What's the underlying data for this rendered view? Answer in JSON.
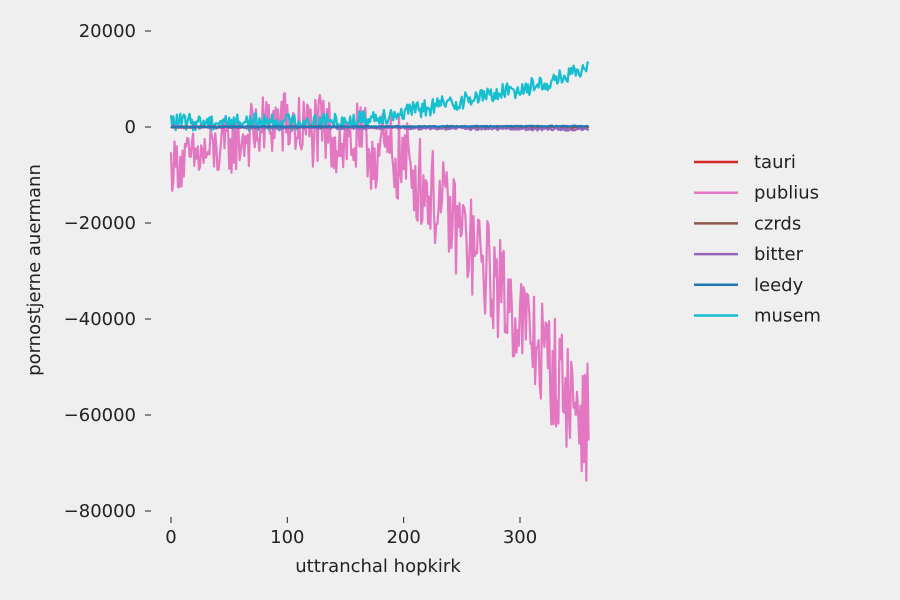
{
  "chart_data": {
    "type": "line",
    "title": "",
    "xlabel": "uttranchal hopkirk",
    "ylabel": "pornostjerne auermann",
    "xlim": [
      -8,
      360
    ],
    "ylim": [
      -80000,
      21000
    ],
    "xticks": [
      0,
      100,
      200,
      300
    ],
    "yticks": [
      20000,
      0,
      -20000,
      -40000,
      -60000,
      -80000
    ],
    "ytick_labels": [
      "20000",
      "0",
      "−20000",
      "−40000",
      "−60000",
      "−80000"
    ],
    "xtick_labels": [
      "0",
      "100",
      "200",
      "300"
    ],
    "grid": false,
    "legend_position": "right",
    "x_range": [
      0,
      359
    ],
    "series": [
      {
        "name": "tauri",
        "color": "#d62728",
        "trend": [
          [
            0,
            0
          ],
          [
            359,
            0
          ]
        ],
        "noise": 200
      },
      {
        "name": "publius",
        "color": "#e377c2",
        "trend": [
          [
            0,
            -8000
          ],
          [
            40,
            -5000
          ],
          [
            90,
            1000
          ],
          [
            140,
            -2000
          ],
          [
            200,
            -7000
          ],
          [
            250,
            -22000
          ],
          [
            300,
            -40000
          ],
          [
            340,
            -55000
          ],
          [
            359,
            -62000
          ]
        ],
        "noise": 9000
      },
      {
        "name": "czrds",
        "color": "#8c564b",
        "trend": [
          [
            0,
            0
          ],
          [
            359,
            0
          ]
        ],
        "noise": 150
      },
      {
        "name": "bitter",
        "color": "#9467bd",
        "trend": [
          [
            0,
            0
          ],
          [
            200,
            -200
          ],
          [
            359,
            -500
          ]
        ],
        "noise": 300
      },
      {
        "name": "leedy",
        "color": "#1f77b4",
        "trend": [
          [
            0,
            0
          ],
          [
            359,
            200
          ]
        ],
        "noise": 100
      },
      {
        "name": "musem",
        "color": "#17becf",
        "trend": [
          [
            0,
            1000
          ],
          [
            150,
            1200
          ],
          [
            200,
            3000
          ],
          [
            260,
            6000
          ],
          [
            320,
            9000
          ],
          [
            359,
            12000
          ]
        ],
        "noise": 1800
      }
    ]
  }
}
